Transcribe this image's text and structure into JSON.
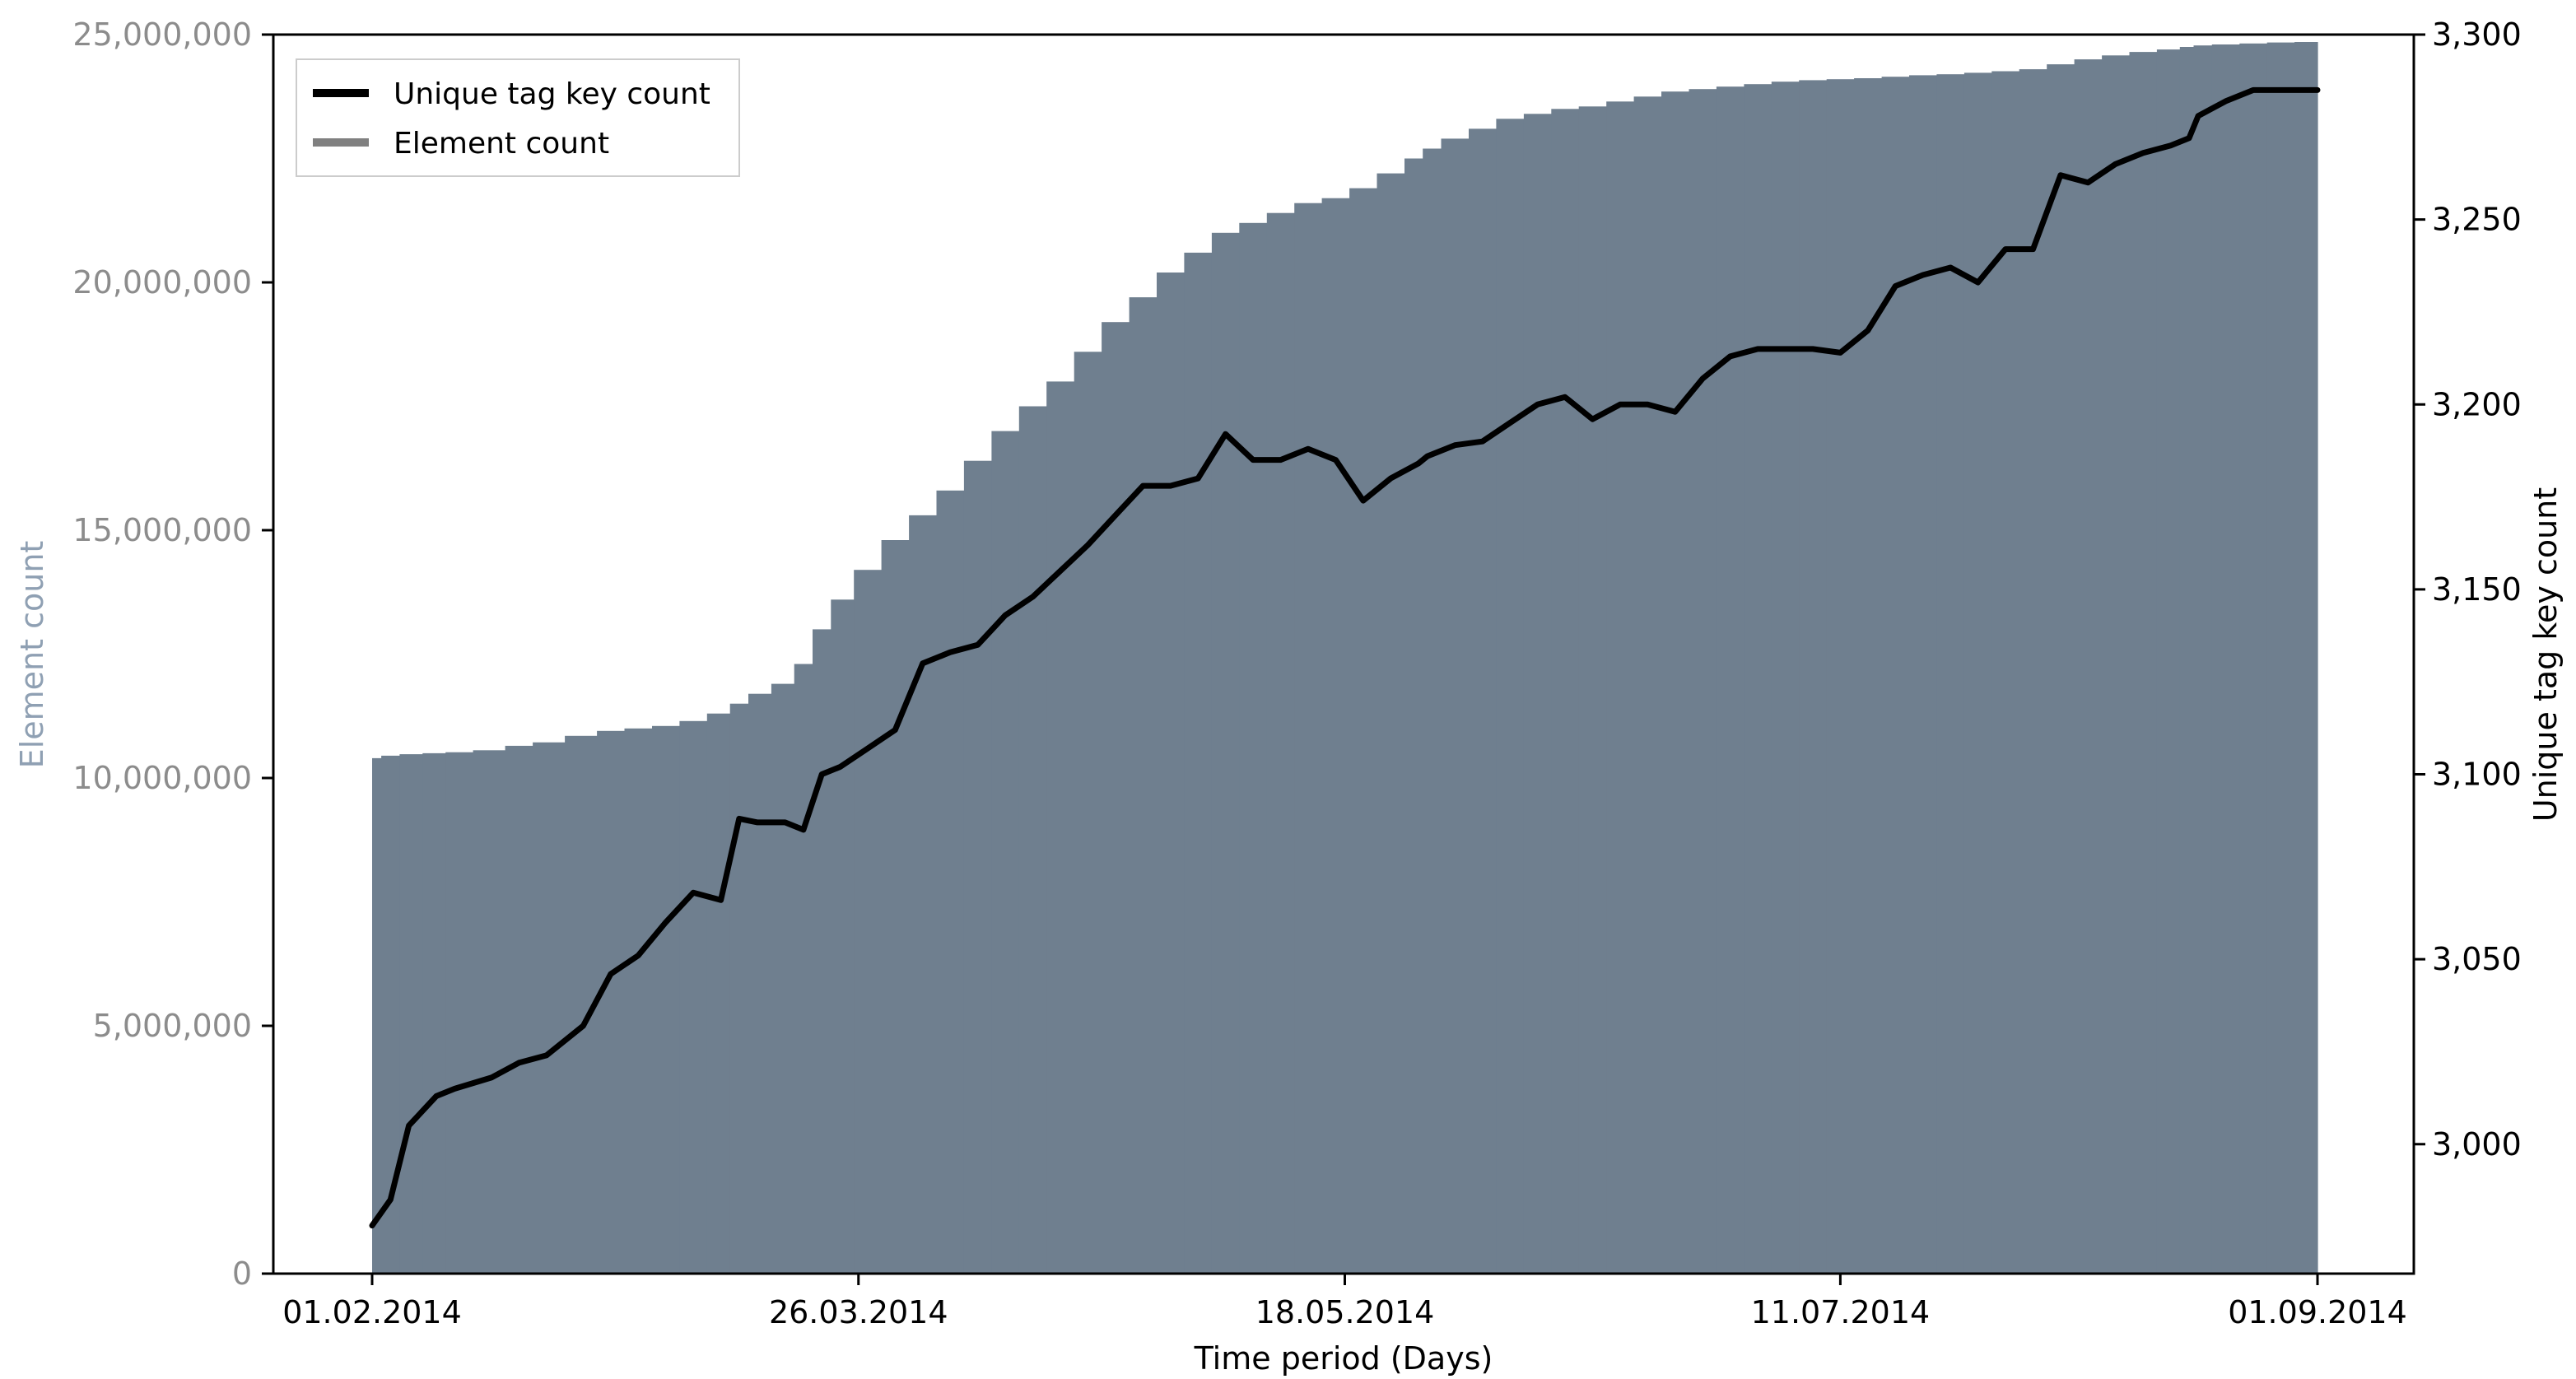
{
  "chart_data": {
    "type": "line",
    "x": [
      "01.02.2014",
      "03.02.2014",
      "05.02.2014",
      "08.02.2014",
      "10.02.2014",
      "14.02.2014",
      "17.02.2014",
      "20.02.2014",
      "24.02.2014",
      "27.02.2014",
      "02.03.2014",
      "05.03.2014",
      "08.03.2014",
      "11.03.2014",
      "13.03.2014",
      "15.03.2014",
      "18.03.2014",
      "20.03.2014",
      "22.03.2014",
      "24.03.2014",
      "27.03.2014",
      "30.03.2014",
      "02.04.2014",
      "05.04.2014",
      "08.04.2014",
      "11.04.2014",
      "14.04.2014",
      "17.04.2014",
      "20.04.2014",
      "23.04.2014",
      "26.04.2014",
      "29.04.2014",
      "02.05.2014",
      "05.05.2014",
      "08.05.2014",
      "11.05.2014",
      "14.05.2014",
      "17.05.2014",
      "20.05.2014",
      "23.05.2014",
      "26.05.2014",
      "27.05.2014",
      "30.05.2014",
      "02.06.2014",
      "05.06.2014",
      "08.06.2014",
      "11.06.2014",
      "14.06.2014",
      "17.06.2014",
      "20.06.2014",
      "23.06.2014",
      "26.06.2014",
      "29.06.2014",
      "02.07.2014",
      "05.07.2014",
      "08.07.2014",
      "11.07.2014",
      "14.07.2014",
      "17.07.2014",
      "20.07.2014",
      "23.07.2014",
      "26.07.2014",
      "29.07.2014",
      "01.08.2014",
      "04.08.2014",
      "07.08.2014",
      "10.08.2014",
      "13.08.2014",
      "16.08.2014",
      "18.08.2014",
      "19.08.2014",
      "22.08.2014",
      "25.08.2014",
      "28.08.2014",
      "31.08.2014",
      "01.09.2014"
    ],
    "series": [
      {
        "name": "Unique tag key count",
        "axis": "right",
        "color": "#000000",
        "values": [
          2978,
          2985,
          3005,
          3013,
          3015,
          3018,
          3022,
          3024,
          3032,
          3046,
          3051,
          3060,
          3068,
          3066,
          3088,
          3087,
          3087,
          3085,
          3100,
          3102,
          3107,
          3112,
          3130,
          3133,
          3135,
          3143,
          3148,
          3155,
          3162,
          3170,
          3178,
          3178,
          3180,
          3192,
          3185,
          3185,
          3188,
          3185,
          3174,
          3180,
          3184,
          3186,
          3189,
          3190,
          3195,
          3200,
          3202,
          3196,
          3200,
          3200,
          3198,
          3207,
          3213,
          3215,
          3215,
          3215,
          3214,
          3220,
          3232,
          3235,
          3237,
          3233,
          3242,
          3242,
          3262,
          3260,
          3265,
          3268,
          3270,
          3272,
          3278,
          3282,
          3285,
          3285,
          3285,
          3285
        ],
        "values_note": "read from line"
      },
      {
        "name": "Element count",
        "axis": "left",
        "color": "#6f7f8f",
        "values": [
          10400000,
          10450000,
          10480000,
          10500000,
          10520000,
          10560000,
          10650000,
          10720000,
          10850000,
          10950000,
          11000000,
          11050000,
          11150000,
          11300000,
          11500000,
          11700000,
          11900000,
          12300000,
          13000000,
          13600000,
          14200000,
          14800000,
          15300000,
          15800000,
          16400000,
          17000000,
          17500000,
          18000000,
          18600000,
          19200000,
          19700000,
          20200000,
          20600000,
          21000000,
          21200000,
          21400000,
          21600000,
          21700000,
          21900000,
          22200000,
          22500000,
          22700000,
          22900000,
          23100000,
          23300000,
          23400000,
          23500000,
          23550000,
          23650000,
          23750000,
          23850000,
          23900000,
          23950000,
          24000000,
          24050000,
          24080000,
          24100000,
          24120000,
          24150000,
          24180000,
          24200000,
          24230000,
          24260000,
          24300000,
          24400000,
          24500000,
          24580000,
          24650000,
          24700000,
          24750000,
          24780000,
          24800000,
          24820000,
          24840000,
          24850000,
          24850000
        ]
      }
    ],
    "xlabel": "Time period (Days)",
    "ylabel_left": "Element count",
    "ylabel_right": "Unique tag key count",
    "x_ticks": [
      "01.02.2014",
      "26.03.2014",
      "18.05.2014",
      "11.07.2014",
      "01.09.2014"
    ],
    "y_left_ticks": [
      "0",
      "5,000,000",
      "10,000,000",
      "15,000,000",
      "20,000,000",
      "25,000,000"
    ],
    "y_right_ticks": [
      "3,000",
      "3,050",
      "3,100",
      "3,150",
      "3,200",
      "3,250",
      "3,300"
    ],
    "ylim_left": [
      0,
      25000000
    ],
    "ylim_right": [
      2965,
      3300
    ],
    "legend": {
      "position": "top-left",
      "entries": [
        {
          "label": "Unique tag key count",
          "color": "#000000"
        },
        {
          "label": "Element count",
          "color": "#808080"
        }
      ]
    },
    "grid": false
  }
}
